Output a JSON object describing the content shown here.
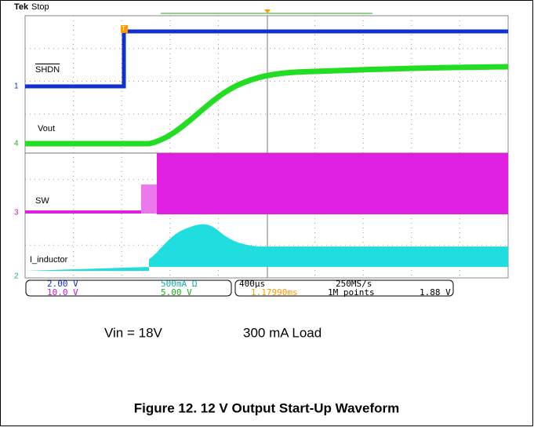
{
  "scope": {
    "brand": "Tek",
    "state": "Stop",
    "trigger_marker": "T",
    "channels": [
      {
        "number": "1",
        "label": "SHDN",
        "scale": "2.00 V"
      },
      {
        "number": "2",
        "label": "I_inductor",
        "scale": "500mA Ω"
      },
      {
        "number": "3",
        "label": "SW",
        "scale": "10.0 V"
      },
      {
        "number": "4",
        "label": "Vout",
        "scale": "5.00 V"
      }
    ],
    "timebase": "400µs",
    "sample_rate": "250MS/s",
    "trigger_position": "1.17990ms",
    "record_length": "1M points",
    "trigger_level": "1.88 V"
  },
  "conditions": {
    "input": "Vin = 18V",
    "load": "300 mA Load"
  },
  "caption": "Figure 12. 12 V Output Start-Up Waveform"
}
